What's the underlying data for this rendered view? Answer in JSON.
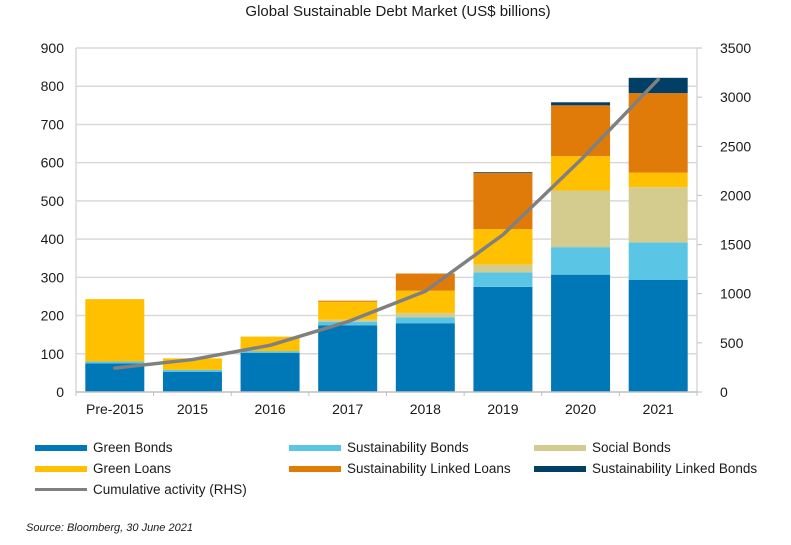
{
  "chart_data": {
    "type": "bar",
    "stacked": true,
    "title": "Global Sustainable Debt Market (US$ billions)",
    "xlabel": "",
    "ylabel": "",
    "categories": [
      "Pre-2015",
      "2015",
      "2016",
      "2017",
      "2018",
      "2019",
      "2020",
      "2021"
    ],
    "ylim": [
      0,
      900
    ],
    "yticks": [
      0,
      100,
      200,
      300,
      400,
      500,
      600,
      700,
      800,
      900
    ],
    "y2lim": [
      0,
      3500
    ],
    "y2ticks": [
      0,
      500,
      1000,
      1500,
      2000,
      2500,
      3000,
      3500
    ],
    "grid": true,
    "legend_position": "bottom",
    "series": [
      {
        "name": "Green Bonds",
        "color": "#0077B6",
        "values": [
          75,
          53,
          102,
          174,
          180,
          275,
          307,
          293
        ]
      },
      {
        "name": "Sustainability Bonds",
        "color": "#5BC5E6",
        "values": [
          5,
          5,
          5,
          10,
          15,
          38,
          72,
          98
        ]
      },
      {
        "name": "Social Bonds",
        "color": "#D4CC8E",
        "values": [
          0,
          0,
          0,
          5,
          12,
          20,
          148,
          145
        ]
      },
      {
        "name": "Green Loans",
        "color": "#FFC000",
        "values": [
          163,
          30,
          38,
          47,
          58,
          93,
          90,
          38
        ]
      },
      {
        "name": "Sustainability Linked Loans",
        "color": "#E07B0A",
        "values": [
          0,
          0,
          0,
          3,
          45,
          147,
          133,
          208
        ]
      },
      {
        "name": "Sustainability Linked Bonds",
        "color": "#023F66",
        "values": [
          0,
          0,
          0,
          0,
          0,
          2,
          8,
          40
        ]
      }
    ],
    "line_series": {
      "name": "Cumulative activity (RHS)",
      "color": "#808080",
      "axis": "right",
      "values": [
        243,
        330,
        475,
        715,
        1025,
        1600,
        2360,
        3180
      ]
    },
    "legend": [
      "Green Bonds",
      "Sustainability Bonds",
      "Social Bonds",
      "Green Loans",
      "Sustainability Linked Loans",
      "Sustainability Linked Bonds",
      "Cumulative activity (RHS)"
    ],
    "source": "Source: Bloomberg, 30 June 2021"
  }
}
